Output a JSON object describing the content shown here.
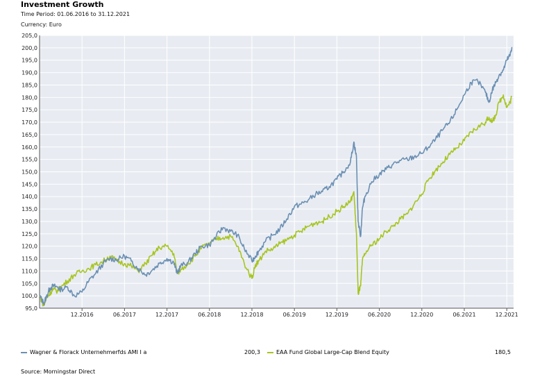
{
  "chart_data": {
    "type": "line",
    "title": "Investment Growth",
    "time_period": "Time Period: 01.06.2016 to 31.12.2021",
    "currency": "Currency: Euro",
    "source": "Source: Morningstar Direct",
    "ylim": [
      95,
      205
    ],
    "y_ticks": [
      "95,0",
      "100,0",
      "105,0",
      "110,0",
      "115,0",
      "120,0",
      "125,0",
      "130,0",
      "135,0",
      "140,0",
      "145,0",
      "150,0",
      "155,0",
      "160,0",
      "165,0",
      "170,0",
      "175,0",
      "180,0",
      "185,0",
      "190,0",
      "195,0",
      "200,0",
      "205,0"
    ],
    "x_ticks": [
      {
        "label": "12.2016",
        "t": 2016.92
      },
      {
        "label": "06.2017",
        "t": 2017.42
      },
      {
        "label": "12.2017",
        "t": 2017.92
      },
      {
        "label": "06.2018",
        "t": 2018.42
      },
      {
        "label": "12.2018",
        "t": 2018.92
      },
      {
        "label": "06.2019",
        "t": 2019.42
      },
      {
        "label": "12.2019",
        "t": 2019.92
      },
      {
        "label": "06.2020",
        "t": 2020.42
      },
      {
        "label": "12.2020",
        "t": 2020.92
      },
      {
        "label": "06.2021",
        "t": 2021.42
      },
      {
        "label": "12.2021",
        "t": 2021.92
      }
    ],
    "x_range": [
      2016.42,
      2022.0
    ],
    "series": [
      {
        "name": "Wagner & Florack Unternehmerfds AMI I a",
        "color": "#6b8fb3",
        "final_value": "200,3",
        "t": [
          2016.42,
          2016.47,
          2016.5,
          2016.54,
          2016.58,
          2016.63,
          2016.67,
          2016.75,
          2016.83,
          2016.92,
          2017.0,
          2017.08,
          2017.17,
          2017.25,
          2017.33,
          2017.42,
          2017.5,
          2017.58,
          2017.67,
          2017.75,
          2017.83,
          2017.92,
          2018.0,
          2018.04,
          2018.08,
          2018.17,
          2018.25,
          2018.33,
          2018.42,
          2018.5,
          2018.58,
          2018.67,
          2018.75,
          2018.83,
          2018.92,
          2018.96,
          2019.0,
          2019.08,
          2019.17,
          2019.25,
          2019.33,
          2019.42,
          2019.5,
          2019.58,
          2019.67,
          2019.75,
          2019.83,
          2019.92,
          2020.0,
          2020.08,
          2020.12,
          2020.15,
          2020.17,
          2020.2,
          2020.22,
          2020.25,
          2020.33,
          2020.42,
          2020.5,
          2020.58,
          2020.67,
          2020.75,
          2020.83,
          2020.92,
          2021.0,
          2021.08,
          2021.17,
          2021.25,
          2021.33,
          2021.42,
          2021.5,
          2021.58,
          2021.67,
          2021.71,
          2021.75,
          2021.79,
          2021.83,
          2021.88,
          2021.92,
          2021.96,
          2021.98
        ],
        "values": [
          100.0,
          97.0,
          99.5,
          103.0,
          104.0,
          103.5,
          102.5,
          103.5,
          100.0,
          101.5,
          106.0,
          109.0,
          113.0,
          115.0,
          114.5,
          116.0,
          114.0,
          111.0,
          108.5,
          110.5,
          113.0,
          115.0,
          113.5,
          109.0,
          112.0,
          113.5,
          117.0,
          120.0,
          120.5,
          124.0,
          127.5,
          126.0,
          124.5,
          119.0,
          114.0,
          116.0,
          118.0,
          122.0,
          124.5,
          127.0,
          131.0,
          136.0,
          137.0,
          138.5,
          141.0,
          142.0,
          144.0,
          147.0,
          150.0,
          154.0,
          162.0,
          156.0,
          130.0,
          124.0,
          135.0,
          140.0,
          146.0,
          149.0,
          151.0,
          153.0,
          154.5,
          155.0,
          156.0,
          157.5,
          160.0,
          163.0,
          167.0,
          170.0,
          175.0,
          181.0,
          186.0,
          186.5,
          182.0,
          178.0,
          183.0,
          186.0,
          189.0,
          191.0,
          195.0,
          197.0,
          200.3
        ]
      },
      {
        "name": "EAA Fund Global Large-Cap Blend Equity",
        "color": "#a8c420",
        "final_value": "180,5",
        "t": [
          2016.42,
          2016.47,
          2016.5,
          2016.54,
          2016.58,
          2016.63,
          2016.67,
          2016.75,
          2016.83,
          2016.92,
          2017.0,
          2017.08,
          2017.17,
          2017.25,
          2017.33,
          2017.42,
          2017.5,
          2017.58,
          2017.67,
          2017.75,
          2017.83,
          2017.92,
          2018.0,
          2018.04,
          2018.08,
          2018.17,
          2018.25,
          2018.33,
          2018.42,
          2018.5,
          2018.58,
          2018.67,
          2018.75,
          2018.83,
          2018.92,
          2018.96,
          2019.0,
          2019.08,
          2019.17,
          2019.25,
          2019.33,
          2019.42,
          2019.5,
          2019.58,
          2019.67,
          2019.75,
          2019.83,
          2019.92,
          2020.0,
          2020.08,
          2020.12,
          2020.15,
          2020.17,
          2020.2,
          2020.22,
          2020.25,
          2020.33,
          2020.42,
          2020.5,
          2020.58,
          2020.67,
          2020.75,
          2020.83,
          2020.92,
          2021.0,
          2021.08,
          2021.17,
          2021.25,
          2021.33,
          2021.42,
          2021.5,
          2021.58,
          2021.67,
          2021.71,
          2021.75,
          2021.79,
          2021.83,
          2021.88,
          2021.92,
          2021.96,
          2021.98
        ],
        "values": [
          100.0,
          96.0,
          99.0,
          101.0,
          102.5,
          102.0,
          103.5,
          106.0,
          108.5,
          110.0,
          111.0,
          112.5,
          114.0,
          116.0,
          114.0,
          113.0,
          112.0,
          110.0,
          113.0,
          116.5,
          119.5,
          120.0,
          117.0,
          109.0,
          110.5,
          113.0,
          116.0,
          119.5,
          121.0,
          123.0,
          123.5,
          124.0,
          120.0,
          113.0,
          107.0,
          112.5,
          114.0,
          118.0,
          119.0,
          121.0,
          122.5,
          124.5,
          126.0,
          128.0,
          129.5,
          130.0,
          132.0,
          134.0,
          136.0,
          138.0,
          142.0,
          125.0,
          101.0,
          104.0,
          114.0,
          117.0,
          120.5,
          123.0,
          126.0,
          128.0,
          131.0,
          133.0,
          137.0,
          141.0,
          147.0,
          150.5,
          154.0,
          157.0,
          159.5,
          162.5,
          166.0,
          168.0,
          170.0,
          172.0,
          170.0,
          173.0,
          178.0,
          181.0,
          176.0,
          178.0,
          180.5
        ]
      }
    ]
  }
}
